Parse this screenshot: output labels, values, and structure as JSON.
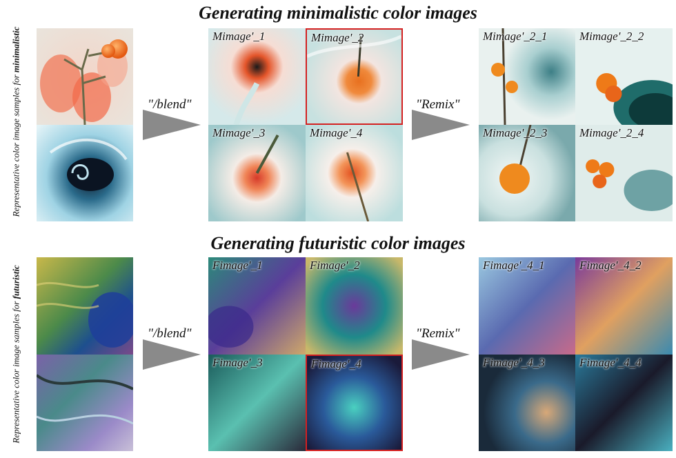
{
  "sections": [
    {
      "title": "Generating minimalistic color images",
      "side_label_prefix": "Representative color image samples for",
      "side_label_keyword": "minimalistic",
      "blend_label": "\"/blend\"",
      "remix_label": "\"Remix\"",
      "grid1": [
        "Mimage'_1",
        "Mimage'_2",
        "Mimage'_3",
        "Mimage'_4"
      ],
      "grid2": [
        "Mimage'_2_1",
        "Mimage'_2_2",
        "Mimage'_2_3",
        "Mimage'_2_4"
      ],
      "selected": "Mimage'_2"
    },
    {
      "title": "Generating futuristic color images",
      "side_label_prefix": "Representative color image samples for",
      "side_label_keyword": "futuristic",
      "blend_label": "\"/blend\"",
      "remix_label": "\"Remix\"",
      "grid1": [
        "Fimage'_1",
        "Fimage'_2",
        "Fimage'_3",
        "Fimage'_4"
      ],
      "grid2": [
        "Fimage'_4_1",
        "Fimage'_4_2",
        "Fimage'_4_3",
        "Fimage'_4_4"
      ],
      "selected": "Fimage'_4"
    }
  ],
  "colors": {
    "selection_border": "#d42020",
    "arrow": "#8a8a8a"
  }
}
